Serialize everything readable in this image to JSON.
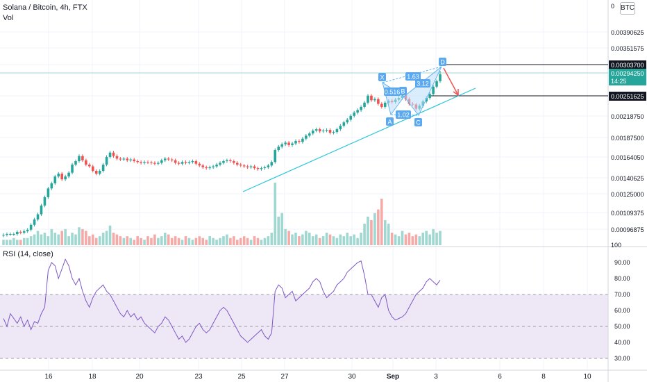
{
  "title": "Solana / Bitcoin, 4h, FTX",
  "volume_label": "Vol",
  "rsi_label": "RSI (14, close)",
  "currency": "BTC",
  "price_axis": {
    "top_value": "0",
    "ticks": [
      "0.00390625",
      "0.00351575",
      "0.00218750",
      "0.00187500",
      "0.00164050",
      "0.00140625",
      "0.00125000",
      "0.00109375",
      "0.00096875"
    ],
    "bottom_value": "100"
  },
  "price_labels": {
    "target_high": "0.00303700",
    "current_price": "0.00294250",
    "countdown": "14:25",
    "target_low": "0.00251625"
  },
  "rsi_axis": [
    "90.00",
    "80.00",
    "70.00",
    "60.00",
    "50.00",
    "40.00",
    "30.00"
  ],
  "time_axis": [
    "16",
    "18",
    "20",
    "23",
    "25",
    "27",
    "30",
    "Sep",
    "3",
    "6",
    "8",
    "10"
  ],
  "pattern": {
    "points": [
      "X",
      "A",
      "B",
      "C",
      "D"
    ],
    "ratios": [
      "1.63",
      "0.516",
      "3.12",
      "1.02"
    ]
  },
  "colors": {
    "up": "#26a69a",
    "down": "#ef5350",
    "trendline": "#26c6da",
    "harmonic": "#64b5f6",
    "rsi_line": "#7e57c2",
    "rsi_band": "#ede7f6",
    "arrow": "#ef5350"
  },
  "chart_data": {
    "type": "candlestick",
    "log_scale": true,
    "grid": true,
    "price_anchors": [
      [
        0.000969,
        330
      ],
      [
        0.001094,
        306
      ],
      [
        0.00125,
        279
      ],
      [
        0.001406,
        256
      ],
      [
        0.00164,
        226
      ],
      [
        0.001875,
        198
      ],
      [
        0.002188,
        167
      ],
      [
        0.002516,
        138
      ],
      [
        0.002943,
        107
      ],
      [
        0.003037,
        93
      ],
      [
        0.003516,
        69
      ],
      [
        0.003906,
        46
      ]
    ],
    "closes": [
      0.00093,
      0.000935,
      0.000935,
      0.000935,
      0.00095,
      0.000945,
      0.000955,
      0.000965,
      0.001,
      0.00104,
      0.00108,
      0.00115,
      0.00122,
      0.0013,
      0.00135,
      0.00142,
      0.00145,
      0.00139,
      0.00142,
      0.00146,
      0.00155,
      0.00159,
      0.00165,
      0.0016,
      0.00155,
      0.00153,
      0.00148,
      0.00145,
      0.00148,
      0.00155,
      0.00164,
      0.00169,
      0.00165,
      0.00162,
      0.00161,
      0.00162,
      0.0016,
      0.00161,
      0.00159,
      0.00158,
      0.00157,
      0.00158,
      0.001575,
      0.00157,
      0.00156,
      0.00157,
      0.0016,
      0.00162,
      0.00161,
      0.0016,
      0.00157,
      0.00156,
      0.00158,
      0.00157,
      0.00158,
      0.00159,
      0.00156,
      0.00154,
      0.00152,
      0.00151,
      0.00152,
      0.00153,
      0.00155,
      0.00157,
      0.00159,
      0.0016,
      0.00159,
      0.00157,
      0.00155,
      0.00154,
      0.00153,
      0.00152,
      0.00153,
      0.00151,
      0.0015,
      0.00151,
      0.00152,
      0.00154,
      0.00158,
      0.00172,
      0.00176,
      0.00179,
      0.00181,
      0.00178,
      0.0018,
      0.00183,
      0.00182,
      0.00186,
      0.0019,
      0.00193,
      0.00197,
      0.00199,
      0.00196,
      0.00197,
      0.00198,
      0.00194,
      0.00195,
      0.00199,
      0.00204,
      0.00209,
      0.00213,
      0.00219,
      0.00224,
      0.00228,
      0.00233,
      0.0024,
      0.00252,
      0.00244,
      0.00246,
      0.00238,
      0.00233,
      0.0024,
      0.00243,
      0.00241,
      0.00245,
      0.00248,
      0.00253,
      0.00246,
      0.00238,
      0.00237,
      0.0023,
      0.00235,
      0.00242,
      0.00248,
      0.00255,
      0.00269,
      0.0028,
      0.002943
    ],
    "volumes": [
      3,
      3,
      3,
      4,
      3,
      3,
      4,
      4,
      5,
      6,
      8,
      6,
      7,
      5,
      9,
      7,
      6,
      8,
      9,
      5,
      7,
      6,
      10,
      9,
      8,
      5,
      6,
      4,
      5,
      7,
      8,
      11,
      7,
      6,
      5,
      4,
      5,
      4,
      3,
      5,
      4,
      3,
      5,
      4,
      6,
      4,
      5,
      7,
      6,
      4,
      5,
      4,
      3,
      5,
      4,
      3,
      4,
      5,
      4,
      3,
      5,
      4,
      3,
      4,
      5,
      6,
      4,
      5,
      3,
      4,
      5,
      4,
      3,
      5,
      4,
      3,
      4,
      5,
      7,
      35,
      16,
      18,
      9,
      8,
      6,
      7,
      5,
      6,
      8,
      7,
      5,
      6,
      4,
      5,
      7,
      6,
      5,
      4,
      6,
      5,
      7,
      5,
      6,
      4,
      7,
      12,
      16,
      14,
      18,
      20,
      26,
      14,
      12,
      7,
      6,
      5,
      8,
      6,
      7,
      5,
      6,
      5,
      7,
      8,
      6,
      9,
      7,
      8
    ],
    "rsi": [
      55,
      50,
      58,
      55,
      52,
      56,
      50,
      54,
      48,
      53,
      52,
      58,
      62,
      85,
      90,
      88,
      80,
      86,
      92,
      88,
      80,
      76,
      80,
      72,
      66,
      62,
      68,
      72,
      74,
      76,
      72,
      70,
      66,
      62,
      58,
      56,
      60,
      56,
      58,
      54,
      56,
      52,
      50,
      48,
      46,
      50,
      52,
      56,
      54,
      50,
      46,
      42,
      44,
      40,
      42,
      46,
      50,
      52,
      48,
      46,
      48,
      52,
      56,
      60,
      62,
      60,
      56,
      52,
      48,
      44,
      42,
      40,
      42,
      44,
      46,
      48,
      44,
      42,
      46,
      72,
      76,
      74,
      68,
      70,
      72,
      66,
      68,
      70,
      72,
      74,
      78,
      80,
      78,
      72,
      68,
      70,
      72,
      76,
      78,
      80,
      84,
      86,
      88,
      90,
      91,
      82,
      70,
      70,
      66,
      62,
      68,
      70,
      60,
      56,
      54,
      55,
      56,
      58,
      62,
      66,
      70,
      72,
      74,
      78,
      80,
      78,
      76,
      79
    ]
  }
}
